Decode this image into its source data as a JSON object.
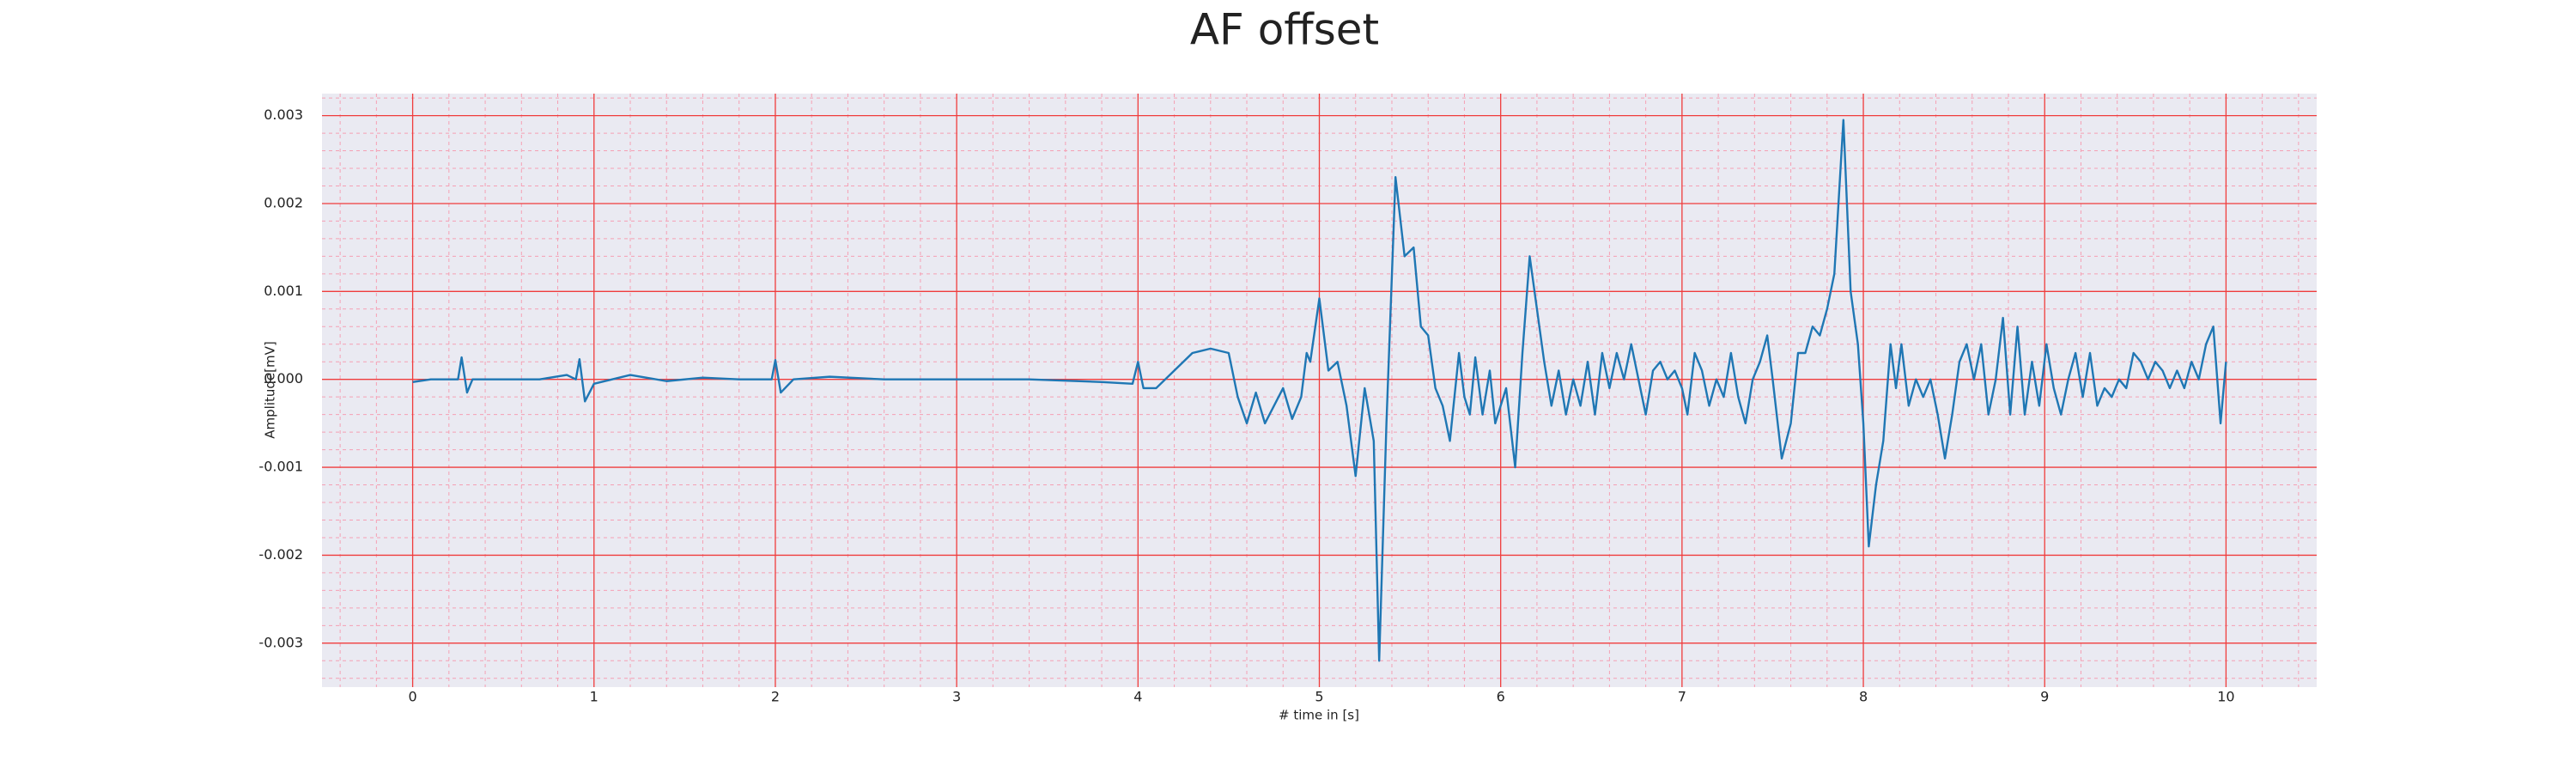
{
  "chart_data": {
    "type": "line",
    "title": "AF offset",
    "xlabel": "# time in [s]",
    "ylabel": "Amplitude[mV]",
    "color": "#1f77b4",
    "background": "#eaeaf2",
    "grid_color": "#f03c3c",
    "minor_grid_color": "#f5a0b4",
    "grid": true,
    "minor_grid": true,
    "xlim": [
      -0.5,
      10.5
    ],
    "ylim": [
      -0.0035,
      0.00325
    ],
    "xticks": [
      0,
      1,
      2,
      3,
      4,
      5,
      6,
      7,
      8,
      9,
      10
    ],
    "yticks": [
      -0.003,
      -0.002,
      -0.001,
      {
        "value": 0,
        "label": "0.000"
      },
      0.001,
      0.002,
      0.003
    ],
    "minor_xticks": [
      -0.4,
      -0.2,
      0.2,
      0.4,
      0.6,
      0.8,
      1.2,
      1.4,
      1.6,
      1.8,
      2.2,
      2.4,
      2.6,
      2.8,
      3.2,
      3.4,
      3.6,
      3.8,
      4.2,
      4.4,
      4.6,
      4.8,
      5.2,
      5.4,
      5.6,
      5.8,
      6.2,
      6.4,
      6.6,
      6.8,
      7.2,
      7.4,
      7.6,
      7.8,
      8.2,
      8.4,
      8.6,
      8.8,
      9.2,
      9.4,
      9.6,
      9.8,
      10.2,
      10.4
    ],
    "minor_yticks": [
      -0.0034,
      -0.0032,
      -0.0028,
      -0.0026,
      -0.0024,
      -0.0022,
      -0.0018,
      -0.0016,
      -0.0014,
      -0.0012,
      -0.0008,
      -0.0006,
      -0.0004,
      -0.0002,
      0.0002,
      0.0004,
      0.0006,
      0.0008,
      0.0012,
      0.0014,
      0.0016,
      0.0018,
      0.0022,
      0.0024,
      0.0026,
      0.0028,
      0.0032
    ],
    "x": [
      0,
      0.1,
      0.2,
      0.25,
      0.27,
      0.3,
      0.33,
      0.5,
      0.7,
      0.85,
      0.9,
      0.92,
      0.95,
      1.0,
      1.2,
      1.4,
      1.6,
      1.8,
      1.98,
      2.0,
      2.03,
      2.1,
      2.3,
      2.6,
      3.0,
      3.4,
      3.8,
      3.97,
      4.0,
      4.03,
      4.1,
      4.2,
      4.3,
      4.4,
      4.5,
      4.55,
      4.6,
      4.65,
      4.7,
      4.75,
      4.8,
      4.85,
      4.9,
      4.93,
      4.95,
      5.0,
      5.05,
      5.1,
      5.15,
      5.2,
      5.25,
      5.3,
      5.33,
      5.37,
      5.42,
      5.47,
      5.52,
      5.56,
      5.6,
      5.64,
      5.68,
      5.72,
      5.77,
      5.8,
      5.83,
      5.86,
      5.9,
      5.94,
      5.97,
      6.0,
      6.03,
      6.08,
      6.12,
      6.16,
      6.2,
      6.24,
      6.28,
      6.32,
      6.36,
      6.4,
      6.44,
      6.48,
      6.52,
      6.56,
      6.6,
      6.64,
      6.68,
      6.72,
      6.76,
      6.8,
      6.84,
      6.88,
      6.92,
      6.96,
      7.0,
      7.03,
      7.07,
      7.11,
      7.15,
      7.19,
      7.23,
      7.27,
      7.31,
      7.35,
      7.39,
      7.43,
      7.47,
      7.5,
      7.55,
      7.6,
      7.64,
      7.68,
      7.72,
      7.76,
      7.8,
      7.84,
      7.89,
      7.93,
      7.97,
      8.0,
      8.03,
      8.07,
      8.11,
      8.15,
      8.18,
      8.21,
      8.25,
      8.29,
      8.33,
      8.37,
      8.41,
      8.45,
      8.49,
      8.53,
      8.57,
      8.61,
      8.65,
      8.69,
      8.73,
      8.77,
      8.81,
      8.85,
      8.89,
      8.93,
      8.97,
      9.01,
      9.05,
      9.09,
      9.13,
      9.17,
      9.21,
      9.25,
      9.29,
      9.33,
      9.37,
      9.41,
      9.45,
      9.49,
      9.53,
      9.57,
      9.61,
      9.65,
      9.69,
      9.73,
      9.77,
      9.81,
      9.85,
      9.89,
      9.93,
      9.97,
      10.0
    ],
    "values": [
      -3e-05,
      0.0,
      0.0,
      0.0,
      0.00025,
      -0.00015,
      0.0,
      0.0,
      0.0,
      5e-05,
      0.0,
      0.00023,
      -0.00025,
      -5e-05,
      5e-05,
      -2e-05,
      2e-05,
      0.0,
      0.0,
      0.00022,
      -0.00015,
      0.0,
      3e-05,
      0.0,
      0.0,
      0.0,
      -3e-05,
      -5e-05,
      0.0002,
      -0.0001,
      -0.0001,
      0.0001,
      0.0003,
      0.00035,
      0.0003,
      -0.0002,
      -0.0005,
      -0.00015,
      -0.0005,
      -0.0003,
      -0.0001,
      -0.00045,
      -0.0002,
      0.0003,
      0.0002,
      0.00092,
      0.0001,
      0.0002,
      -0.0003,
      -0.0011,
      -0.0001,
      -0.0007,
      -0.0032,
      -0.0005,
      0.0023,
      0.0014,
      0.0015,
      0.0006,
      0.0005,
      -0.0001,
      -0.0003,
      -0.0007,
      0.0003,
      -0.0002,
      -0.0004,
      0.00025,
      -0.0004,
      0.0001,
      -0.0005,
      -0.0003,
      -0.0001,
      -0.001,
      0.0003,
      0.0014,
      0.0008,
      0.0002,
      -0.0003,
      0.0001,
      -0.0004,
      0.0,
      -0.0003,
      0.0002,
      -0.0004,
      0.0003,
      -0.0001,
      0.0003,
      0.0,
      0.0004,
      0.0,
      -0.0004,
      0.0001,
      0.0002,
      0.0,
      0.0001,
      -0.0001,
      -0.0004,
      0.0003,
      0.0001,
      -0.0003,
      0.0,
      -0.0002,
      0.0003,
      -0.0002,
      -0.0005,
      0.0,
      0.0002,
      0.0005,
      0.0,
      -0.0009,
      -0.0005,
      0.0003,
      0.0003,
      0.0006,
      0.0005,
      0.0008,
      0.0012,
      0.00295,
      0.001,
      0.0004,
      -0.0005,
      -0.0019,
      -0.0012,
      -0.0007,
      0.0004,
      -0.0001,
      0.0004,
      -0.0003,
      0.0,
      -0.0002,
      0.0,
      -0.0004,
      -0.0009,
      -0.0004,
      0.0002,
      0.0004,
      0.0,
      0.0004,
      -0.0004,
      0.0,
      0.0007,
      -0.0004,
      0.0006,
      -0.0004,
      0.0002,
      -0.0003,
      0.0004,
      -0.0001,
      -0.0004,
      0.0,
      0.0003,
      -0.0002,
      0.0003,
      -0.0003,
      -0.0001,
      -0.0002,
      0.0,
      -0.0001,
      0.0003,
      0.0002,
      0.0,
      0.0002,
      0.0001,
      -0.0001,
      0.0001,
      -0.0001,
      0.0002,
      0.0,
      0.0004,
      0.0006,
      -0.0005,
      0.0002
    ]
  }
}
